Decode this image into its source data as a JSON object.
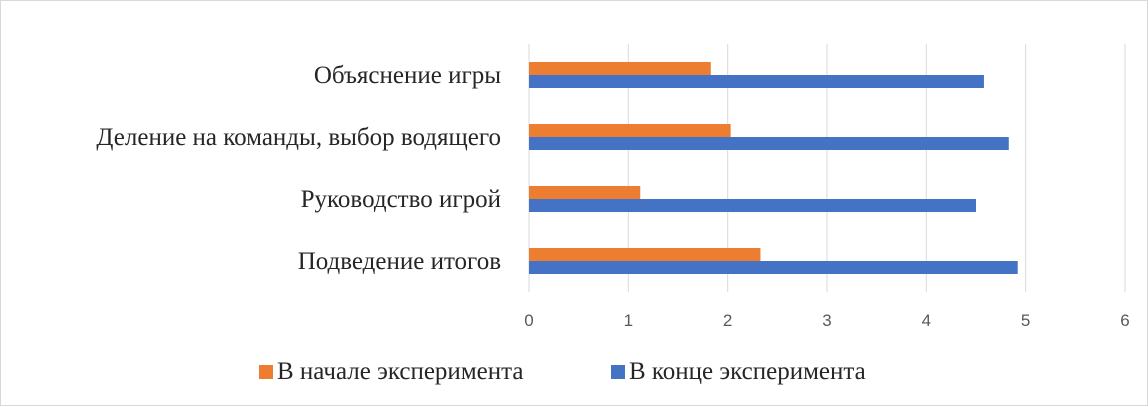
{
  "chart_data": {
    "type": "bar",
    "orientation": "horizontal",
    "categories": [
      "Объяснение игры",
      "Деление на команды, выбор водящего",
      "Руководство игрой",
      "Подведение итогов"
    ],
    "series": [
      {
        "name": "В начале эксперимента",
        "color": "#ED7D31",
        "values": [
          1.83,
          2.03,
          1.12,
          2.33
        ]
      },
      {
        "name": "В конце эксперимента",
        "color": "#4472C4",
        "values": [
          4.58,
          4.83,
          4.5,
          4.92
        ]
      }
    ],
    "xlim": [
      0,
      6
    ],
    "xticks": [
      "0",
      "1",
      "2",
      "3",
      "4",
      "5",
      "6"
    ],
    "grid": "vertical",
    "legend": "bottom"
  }
}
